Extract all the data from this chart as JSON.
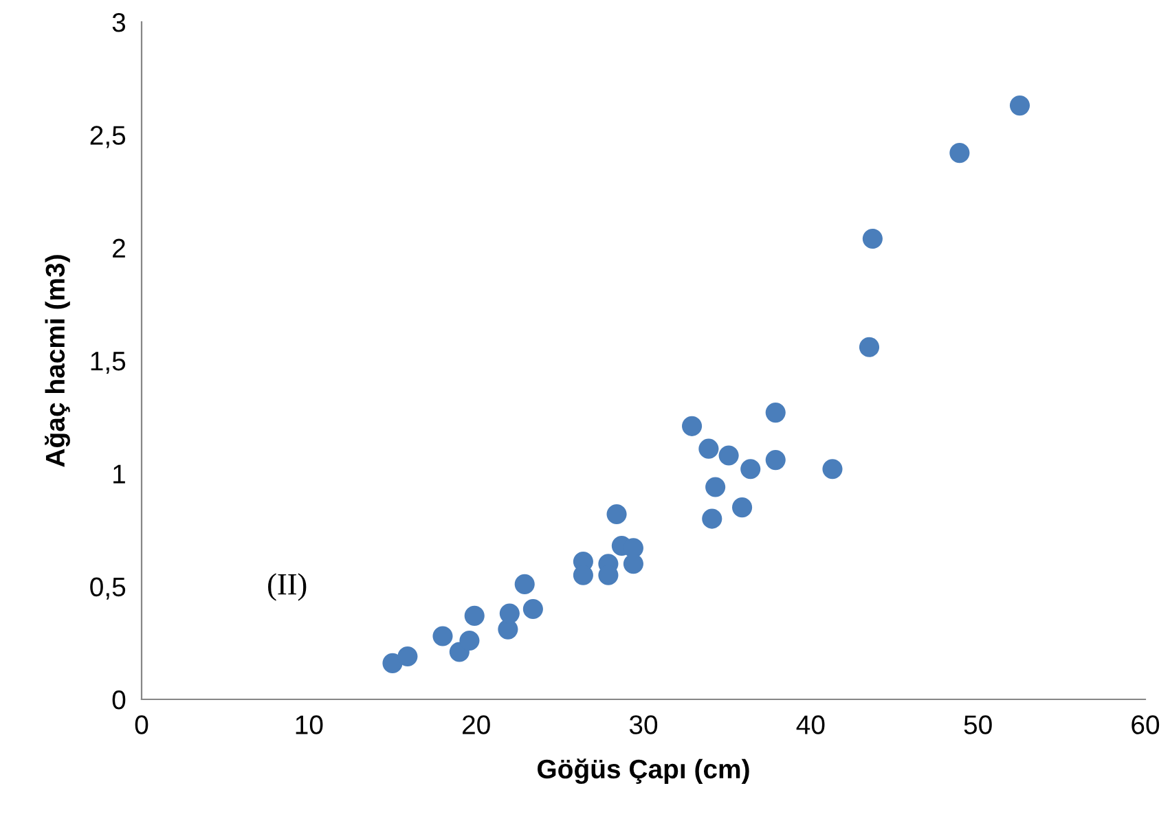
{
  "chart_data": {
    "type": "scatter",
    "xlabel": "Göğüs Çapı (cm)",
    "ylabel": "Ağaç hacmi (m3)",
    "annotations": [
      "(II)"
    ],
    "x": [
      15,
      15.9,
      18,
      19,
      19.6,
      19.9,
      21.9,
      22,
      22.9,
      23.4,
      26.4,
      26.4,
      27.9,
      27.9,
      28.4,
      28.7,
      29.4,
      29.4,
      32.9,
      33.9,
      34.1,
      34.3,
      35.1,
      35.9,
      36.4,
      37.9,
      37.9,
      41.3,
      43.5,
      43.7,
      48.9,
      52.5
    ],
    "values": [
      0.16,
      0.19,
      0.28,
      0.21,
      0.26,
      0.37,
      0.31,
      0.38,
      0.51,
      0.4,
      0.61,
      0.55,
      0.6,
      0.55,
      0.82,
      0.68,
      0.67,
      0.6,
      1.21,
      1.11,
      0.8,
      0.94,
      1.08,
      0.85,
      1.02,
      1.27,
      1.06,
      1.02,
      1.56,
      2.04,
      2.42,
      2.63
    ],
    "color": "#4a7ebb",
    "marker": "circle",
    "grid": false,
    "legend": false,
    "xlim": [
      0,
      60
    ],
    "xticks": [
      0,
      10,
      20,
      30,
      40,
      50,
      60
    ],
    "ylim": [
      0,
      3
    ],
    "yticks": [
      0,
      {
        "value": 0.5,
        "label": "0,5"
      },
      1,
      {
        "value": 1.5,
        "label": "1,5"
      },
      2,
      {
        "value": 2.5,
        "label": "2,5"
      },
      3
    ]
  }
}
